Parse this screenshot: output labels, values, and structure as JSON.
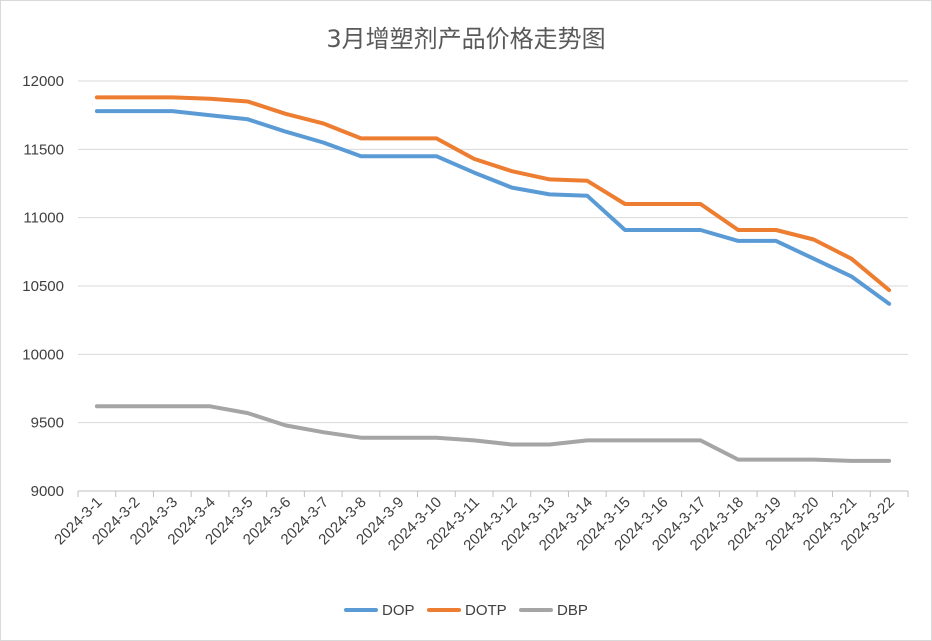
{
  "chart_data": {
    "type": "line",
    "title": "3月增塑剂产品价格走势图",
    "xlabel": "",
    "ylabel": "",
    "ylim": [
      9000,
      12000
    ],
    "yticks": [
      "9000",
      "9500",
      "10000",
      "10500",
      "11000",
      "11500",
      "12000"
    ],
    "grid": "horizontal",
    "legend_position": "bottom",
    "categories": [
      "2024-3-1",
      "2024-3-2",
      "2024-3-3",
      "2024-3-4",
      "2024-3-5",
      "2024-3-6",
      "2024-3-7",
      "2024-3-8",
      "2024-3-9",
      "2024-3-10",
      "2024-3-11",
      "2024-3-12",
      "2024-3-13",
      "2024-3-14",
      "2024-3-15",
      "2024-3-16",
      "2024-3-17",
      "2024-3-18",
      "2024-3-19",
      "2024-3-20",
      "2024-3-21",
      "2024-3-22"
    ],
    "series": [
      {
        "name": "DOP",
        "color": "#5b9bd5",
        "values": [
          11780,
          11780,
          11780,
          11750,
          11720,
          11630,
          11550,
          11450,
          11450,
          11450,
          11330,
          11220,
          11170,
          11160,
          10910,
          10910,
          10910,
          10830,
          10830,
          10700,
          10570,
          10370
        ]
      },
      {
        "name": "DOTP",
        "color": "#ed7d31",
        "values": [
          11880,
          11880,
          11880,
          11870,
          11850,
          11760,
          11690,
          11580,
          11580,
          11580,
          11430,
          11340,
          11280,
          11270,
          11100,
          11100,
          11100,
          10910,
          10910,
          10840,
          10700,
          10470
        ]
      },
      {
        "name": "DBP",
        "color": "#a5a5a5",
        "values": [
          9620,
          9620,
          9620,
          9620,
          9570,
          9480,
          9430,
          9390,
          9390,
          9390,
          9370,
          9340,
          9340,
          9370,
          9370,
          9370,
          9370,
          9230,
          9230,
          9230,
          9220,
          9220
        ]
      }
    ]
  }
}
